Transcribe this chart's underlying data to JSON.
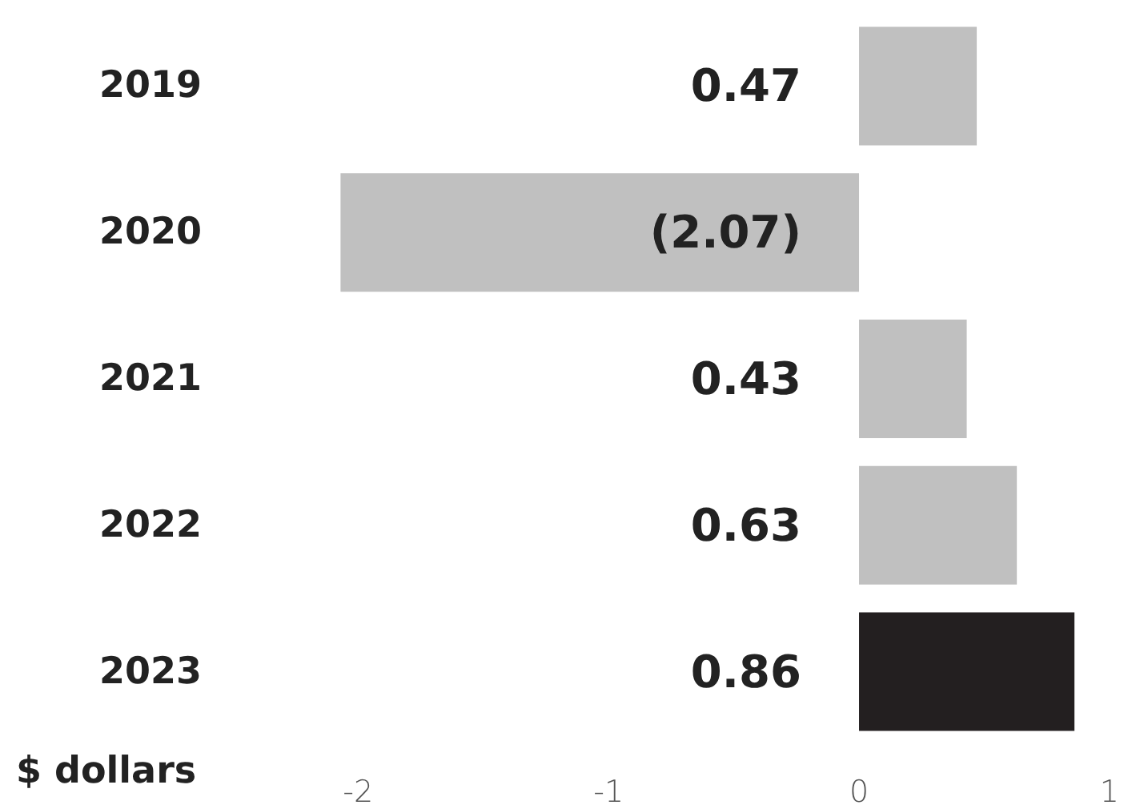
{
  "chart_data": {
    "type": "bar",
    "orientation": "horizontal",
    "xlabel": "$ dollars",
    "categories": [
      "2019",
      "2020",
      "2021",
      "2022",
      "2023"
    ],
    "values": [
      0.47,
      -2.07,
      0.43,
      0.63,
      0.86
    ],
    "colors": [
      "#c0c0c0",
      "#c0c0c0",
      "#c0c0c0",
      "#c0c0c0",
      "#231f20"
    ],
    "value_labels": [
      "0.47",
      "(2.07)",
      "0.43",
      "0.63",
      "0.86"
    ],
    "xlim": [
      -2.1,
      1
    ],
    "xticks": [
      -2,
      -1,
      0,
      1
    ],
    "grid": false
  }
}
